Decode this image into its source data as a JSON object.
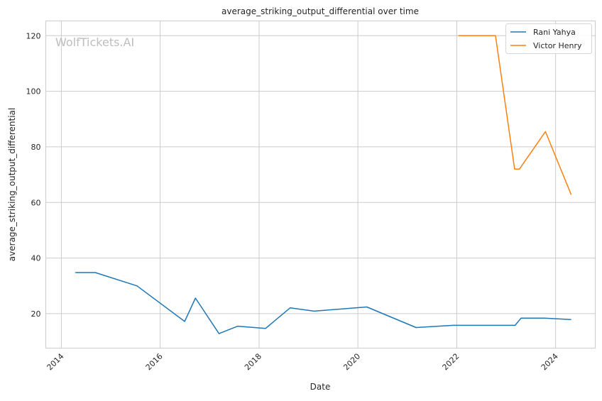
{
  "chart_data": {
    "type": "line",
    "title": "average_striking_output_differential over time",
    "xlabel": "Date",
    "ylabel": "average_striking_output_differential",
    "watermark": "WolfTickets.AI",
    "x_ticks": [
      "2014",
      "2016",
      "2018",
      "2020",
      "2022",
      "2024"
    ],
    "y_ticks": [
      20,
      40,
      60,
      80,
      100,
      120
    ],
    "xlim": [
      "2013-09-08",
      "2024-10-20"
    ],
    "ylim": [
      7.6,
      125.3
    ],
    "grid": true,
    "legend_position": "top-right",
    "series": [
      {
        "name": "Rani Yahya",
        "color": "#1f77b4",
        "x": [
          "2014-04-14",
          "2014-09-08",
          "2015-07-14",
          "2016-06-30",
          "2016-09-18",
          "2017-03-11",
          "2017-07-27",
          "2018-02-18",
          "2018-08-19",
          "2019-02-11",
          "2020-03-07",
          "2021-03-06",
          "2021-12-03",
          "2023-03-08",
          "2023-04-21",
          "2023-10-12",
          "2024-04-25"
        ],
        "values": [
          34.8,
          34.8,
          30.0,
          17.2,
          25.6,
          12.8,
          15.5,
          14.7,
          22.1,
          20.9,
          22.4,
          15.0,
          15.8,
          15.8,
          18.4,
          18.4,
          17.9
        ]
      },
      {
        "name": "Victor Henry",
        "color": "#ff7f0e",
        "x": [
          "2022-01-12",
          "2022-10-14",
          "2023-03-04",
          "2023-04-08",
          "2023-10-18",
          "2024-04-25"
        ],
        "values": [
          120.0,
          120.0,
          72.0,
          72.0,
          85.5,
          62.8
        ]
      }
    ]
  }
}
